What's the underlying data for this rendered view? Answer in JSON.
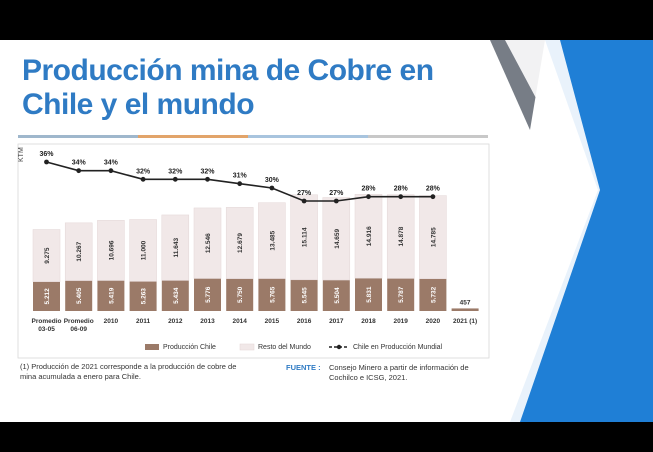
{
  "slide": {
    "title_line1": "Producción mina de Cobre en",
    "title_line2": "Chile y el mundo",
    "note": "(1) Producción de 2021 corresponde a la producción de cobre de mina acumulada a enero para Chile.",
    "fuente_label": "FUENTE :",
    "fuente_text": "Consejo Minero a partir de información de Cochilco e ICSG, 2021."
  },
  "colors": {
    "title": "#2f7bc4",
    "chile_bar": "#9b7a68",
    "world_bar": "#f1e8e8",
    "line": "#222222",
    "deco_blue": "#1f7fd6",
    "deco_gray": "#777d86"
  },
  "chart_data": {
    "type": "bar",
    "stacked": true,
    "ylabel": "KTM",
    "categories": [
      "Promedio 03-05",
      "Promedio 06-09",
      "2010",
      "2011",
      "2012",
      "2013",
      "2014",
      "2015",
      "2016",
      "2017",
      "2018",
      "2019",
      "2020",
      "2021 (1)"
    ],
    "category_lines": [
      [
        "Promedio",
        "03-05"
      ],
      [
        "Promedio",
        "06-09"
      ],
      [
        "2010"
      ],
      [
        "2011"
      ],
      [
        "2012"
      ],
      [
        "2013"
      ],
      [
        "2014"
      ],
      [
        "2015"
      ],
      [
        "2016"
      ],
      [
        "2017"
      ],
      [
        "2018"
      ],
      [
        "2019"
      ],
      [
        "2020"
      ],
      [
        "2021 (1)"
      ]
    ],
    "series": [
      {
        "name": "Producción Chile",
        "values": [
          5212,
          5405,
          5419,
          5263,
          5434,
          5776,
          5750,
          5765,
          5545,
          5504,
          5831,
          5787,
          5732,
          457
        ],
        "labels": [
          "5.212",
          "5.405",
          "5.419",
          "5.263",
          "5.434",
          "5.776",
          "5.750",
          "5.765",
          "5.545",
          "5.504",
          "5.831",
          "5.787",
          "5.732",
          "457"
        ]
      },
      {
        "name": "Resto del Mundo",
        "values": [
          9275,
          10267,
          10696,
          11000,
          11643,
          12546,
          12679,
          13485,
          15114,
          14659,
          14916,
          14878,
          14785,
          null
        ],
        "labels": [
          "9.275",
          "10.267",
          "10.696",
          "11.000",
          "11.643",
          "12.546",
          "12.679",
          "13.485",
          "15.114",
          "14.659",
          "14.916",
          "14.878",
          "14.785",
          ""
        ]
      }
    ],
    "line_series": {
      "name": "Chile en Producción Mundial",
      "values": [
        36,
        34,
        34,
        32,
        32,
        32,
        31,
        30,
        27,
        27,
        28,
        28,
        28,
        null
      ],
      "labels": [
        "36%",
        "34%",
        "34%",
        "32%",
        "32%",
        "32%",
        "31%",
        "30%",
        "27%",
        "27%",
        "28%",
        "28%",
        "28%",
        ""
      ]
    },
    "legend": [
      "Producción Chile",
      "Resto del Mundo",
      "Chile en Producción Mundial"
    ],
    "legend_position": "bottom"
  }
}
